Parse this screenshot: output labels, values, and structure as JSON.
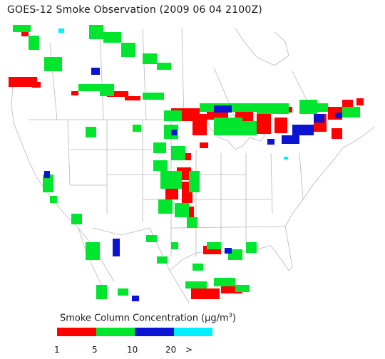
{
  "title": "GOES-12 Smoke Observation (2009 06 04  2100Z)",
  "legend": {
    "label": "Smoke Column Concentration (μg/m³)",
    "label_main": "Smoke Column Concentration (",
    "label_unit": "μg/m",
    "label_sup": "3",
    "label_close": ")",
    "bins": [
      {
        "color": "#ff0000"
      },
      {
        "color": "#00e62e"
      },
      {
        "color": "#0a14d2"
      },
      {
        "color": "#00f0ff"
      }
    ],
    "ticks": [
      "1",
      "5",
      "10",
      "20",
      ">"
    ]
  }
}
